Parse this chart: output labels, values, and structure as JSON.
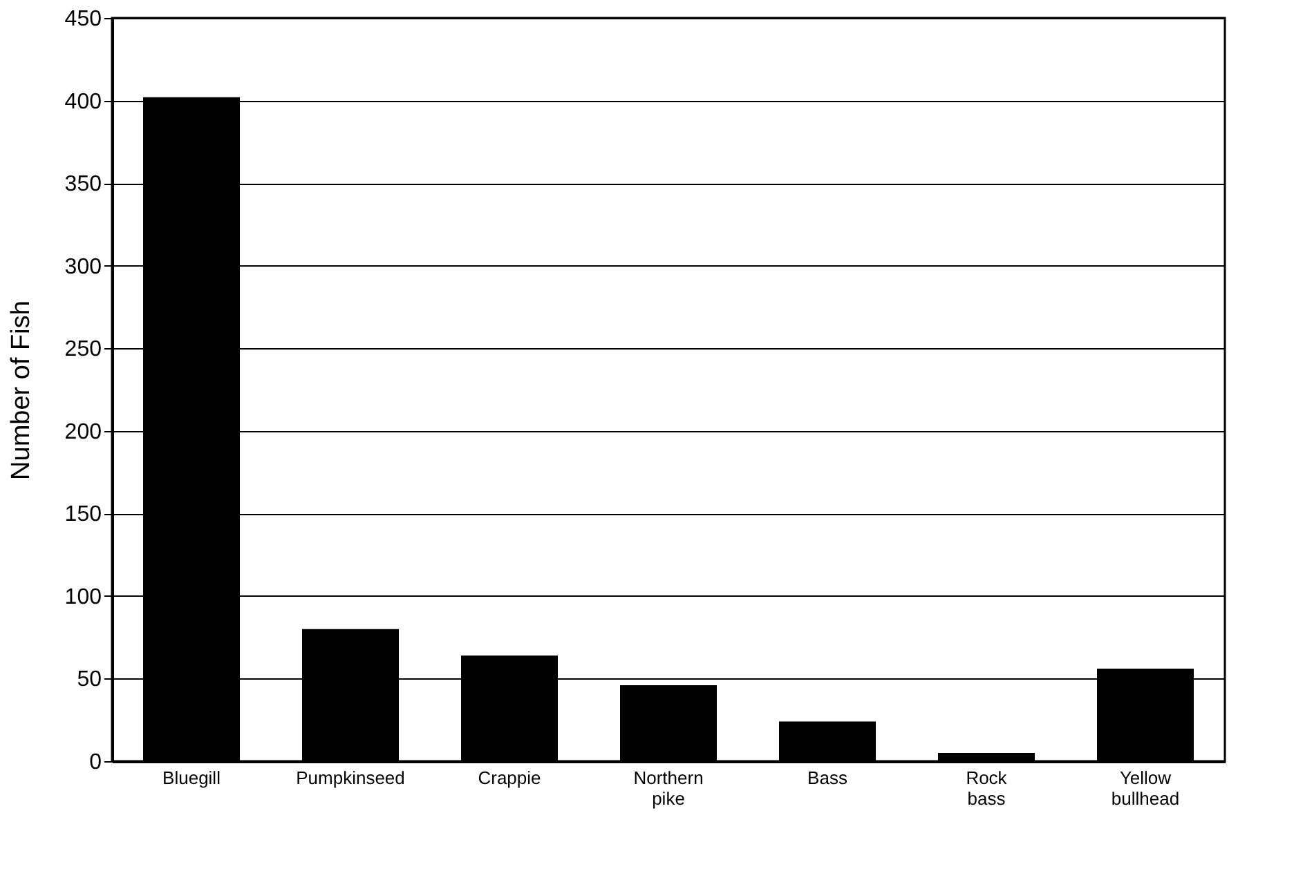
{
  "chart_data": {
    "type": "bar",
    "ylabel": "Number of Fish",
    "categories": [
      "Bluegill",
      "Pumpkinseed",
      "Crappie",
      "Northern pike",
      "Bass",
      "Rock bass",
      "Yellow bullhead"
    ],
    "values": [
      402,
      80,
      64,
      46,
      24,
      5,
      56
    ],
    "color": "#000000",
    "ylim": [
      0,
      450
    ],
    "yticks": [
      0,
      50,
      100,
      150,
      200,
      250,
      300,
      350,
      400,
      450
    ],
    "grid": "y"
  }
}
